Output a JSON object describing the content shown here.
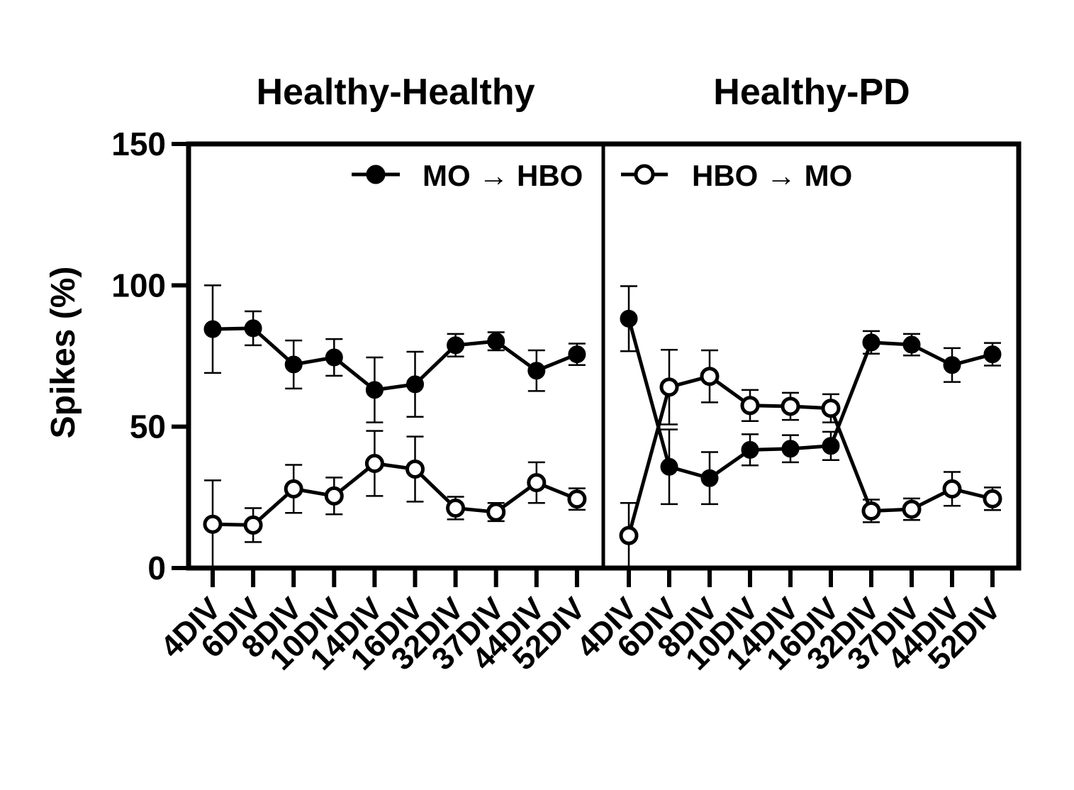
{
  "chart_data": {
    "type": "line",
    "ylabel": "Spikes (%)",
    "ylim": [
      0,
      150
    ],
    "yticks": [
      "0",
      "50",
      "100",
      "150"
    ],
    "legend": {
      "placement": "top",
      "entries": [
        {
          "label": "MO → HBO",
          "marker": "filled-circle"
        },
        {
          "label": "HBO → MO",
          "marker": "open-circle"
        }
      ]
    },
    "panels": [
      {
        "title": "Healthy-Healthy",
        "categories": [
          "4DIV",
          "6DIV",
          "8DIV",
          "10DIV",
          "14DIV",
          "16DIV",
          "32DIV",
          "37DIV",
          "44DIV",
          "52DIV"
        ],
        "series": [
          {
            "marker": "filled",
            "values": [
              84.5,
              84.8,
              72,
              74.5,
              63,
              65,
              78.8,
              80.2,
              69.8,
              75.6
            ],
            "error": [
              15.5,
              6,
              8.5,
              6.5,
              11.5,
              11.5,
              4,
              3.2,
              7.2,
              3.8
            ]
          },
          {
            "marker": "open",
            "values": [
              15.5,
              15.2,
              28,
              25.5,
              37,
              35,
              21.2,
              19.8,
              30.2,
              24.4
            ],
            "error": [
              15.5,
              6,
              8.5,
              6.5,
              11.5,
              11.5,
              4,
              3.2,
              7.2,
              3.8
            ]
          }
        ]
      },
      {
        "title": "Healthy-PD",
        "categories": [
          "4DIV",
          "6DIV",
          "8DIV",
          "10DIV",
          "14DIV",
          "16DIV",
          "32DIV",
          "37DIV",
          "44DIV",
          "52DIV"
        ],
        "series": [
          {
            "marker": "filled",
            "values": [
              88.2,
              35.8,
              31.8,
              41.8,
              42.2,
              43.2,
              79.8,
              79,
              71.8,
              75.6
            ],
            "error": [
              11.5,
              13.2,
              9.2,
              5.5,
              4.8,
              5,
              4,
              3.8,
              6,
              4
            ]
          },
          {
            "marker": "open",
            "values": [
              11.5,
              64,
              67.8,
              57.5,
              57.2,
              56.5,
              20.2,
              20.8,
              28,
              24.5
            ],
            "error": [
              11.5,
              13.2,
              9.2,
              5.5,
              4.8,
              5,
              4,
              3.8,
              6,
              4
            ]
          }
        ]
      }
    ]
  }
}
